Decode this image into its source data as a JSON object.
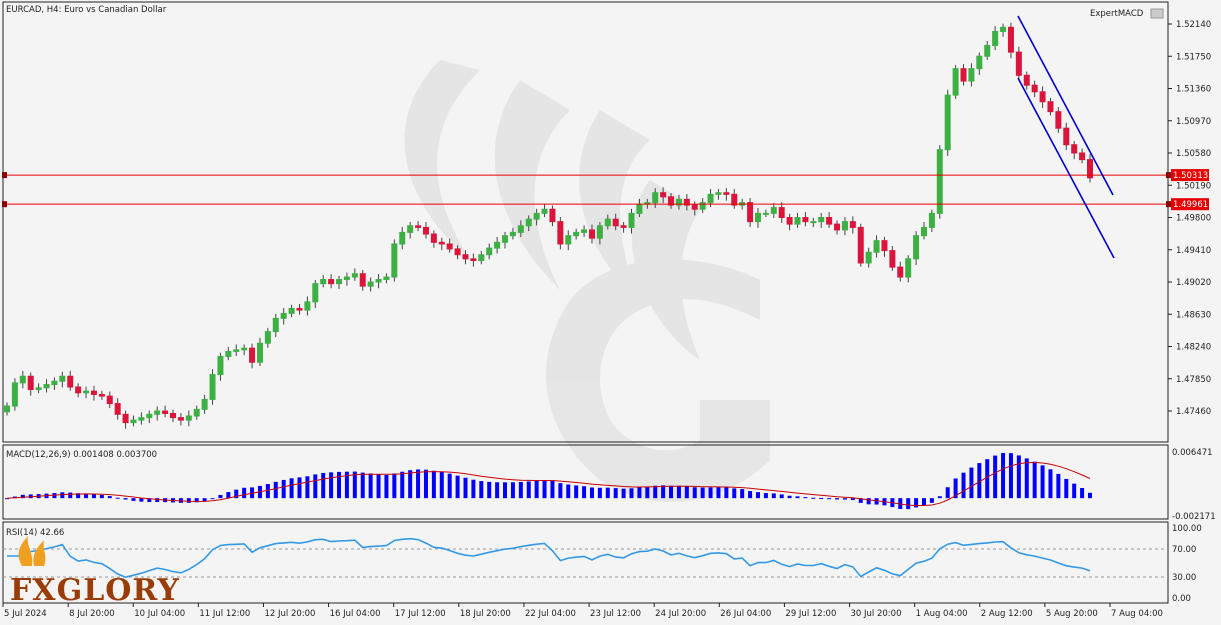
{
  "header": {
    "symbol_title": "EURCAD, H4:  Euro vs Canadian Dollar",
    "indicator_badge": "ExpertMACD"
  },
  "price_axis": {
    "ticks": [
      "1.52140",
      "1.51750",
      "1.51360",
      "1.50970",
      "1.50580",
      "1.50190",
      "1.49800",
      "1.49410",
      "1.49020",
      "1.48630",
      "1.48240",
      "1.47850",
      "1.47460"
    ],
    "tick_values": [
      1.5214,
      1.5175,
      1.5136,
      1.5097,
      1.5058,
      1.5019,
      1.498,
      1.4941,
      1.4902,
      1.4863,
      1.4824,
      1.4785,
      1.4746
    ]
  },
  "levels": {
    "upper": {
      "value": 1.50313,
      "label": "1.50313",
      "color": "#e60000"
    },
    "lower": {
      "value": 1.49961,
      "label": "1.49961",
      "color": "#e60000"
    }
  },
  "macd": {
    "label": "MACD(12,26,9) 0.001408 0.003700",
    "axis_top": "0.006471",
    "axis_bottom": "-0.002171",
    "hist_color": "#0000ff",
    "signal_color": "#cc0000"
  },
  "rsi": {
    "label": "RSI(14) 42.66",
    "levels": [
      "100.00",
      "70.00",
      "30.00",
      "0.00"
    ],
    "line_color": "#3399e6"
  },
  "time_axis": {
    "labels": [
      "5 Jul 2024",
      "8 Jul 20:00",
      "10 Jul 04:00",
      "11 Jul 12:00",
      "12 Jul 20:00",
      "16 Jul 04:00",
      "17 Jul 12:00",
      "18 Jul 20:00",
      "22 Jul 04:00",
      "23 Jul 12:00",
      "24 Jul 20:00",
      "26 Jul 04:00",
      "29 Jul 12:00",
      "30 Jul 20:00",
      "1 Aug 04:00",
      "2 Aug 12:00",
      "5 Aug 20:00",
      "7 Aug 04:00"
    ]
  },
  "logo": {
    "text": "FXGLORY"
  },
  "colors": {
    "bull": "#3cb043",
    "bear": "#dc143c",
    "channel": "#0000cc",
    "background": "#f4f4f4"
  },
  "chart_data": {
    "type": "candlestick",
    "closes": [
      1.4752,
      1.478,
      1.4788,
      1.4772,
      1.4774,
      1.4778,
      1.4782,
      1.4788,
      1.4775,
      1.4768,
      1.477,
      1.4766,
      1.4764,
      1.4755,
      1.4742,
      1.4732,
      1.4735,
      1.4738,
      1.4742,
      1.4746,
      1.4743,
      1.4738,
      1.4735,
      1.474,
      1.4748,
      1.476,
      1.479,
      1.4812,
      1.4818,
      1.482,
      1.4822,
      1.4805,
      1.4828,
      1.4842,
      1.4858,
      1.4864,
      1.487,
      1.4868,
      1.4878,
      1.49,
      1.4905,
      1.49,
      1.4905,
      1.4908,
      1.4912,
      1.4897,
      1.4902,
      1.4905,
      1.4908,
      1.4948,
      1.4962,
      1.497,
      1.4968,
      1.496,
      1.495,
      1.4948,
      1.4942,
      1.4935,
      1.493,
      1.4928,
      1.4935,
      1.4943,
      1.495,
      1.4958,
      1.4962,
      1.497,
      1.4978,
      1.4985,
      1.499,
      1.4975,
      1.4948,
      1.4958,
      1.4962,
      1.4965,
      1.4955,
      1.497,
      1.4978,
      1.497,
      1.4968,
      1.4985,
      1.4996,
      1.4998,
      1.501,
      1.5005,
      1.4995,
      1.5002,
      1.4995,
      1.499,
      1.4998,
      1.5008,
      1.501,
      1.5008,
      1.4995,
      1.4998,
      1.4975,
      1.4985,
      1.4985,
      1.4992,
      1.498,
      1.4972,
      1.498,
      1.4975,
      1.4975,
      1.498,
      1.4972,
      1.4965,
      1.4975,
      1.4968,
      1.4925,
      1.4938,
      1.4952,
      1.494,
      1.492,
      1.4908,
      1.493,
      1.4958,
      1.4968,
      1.4985,
      1.5062,
      1.5128,
      1.516,
      1.5145,
      1.516,
      1.5175,
      1.5188,
      1.5205,
      1.521,
      1.518,
      1.5152,
      1.514,
      1.5132,
      1.512,
      1.5108,
      1.5088,
      1.5068,
      1.5058,
      1.505,
      1.5028
    ],
    "macd_range": [
      -0.002171,
      0.006471
    ],
    "rsi_range": [
      0,
      100
    ],
    "price_range": [
      1.473,
      1.5225
    ],
    "levels": [
      1.50313,
      1.49961
    ]
  }
}
